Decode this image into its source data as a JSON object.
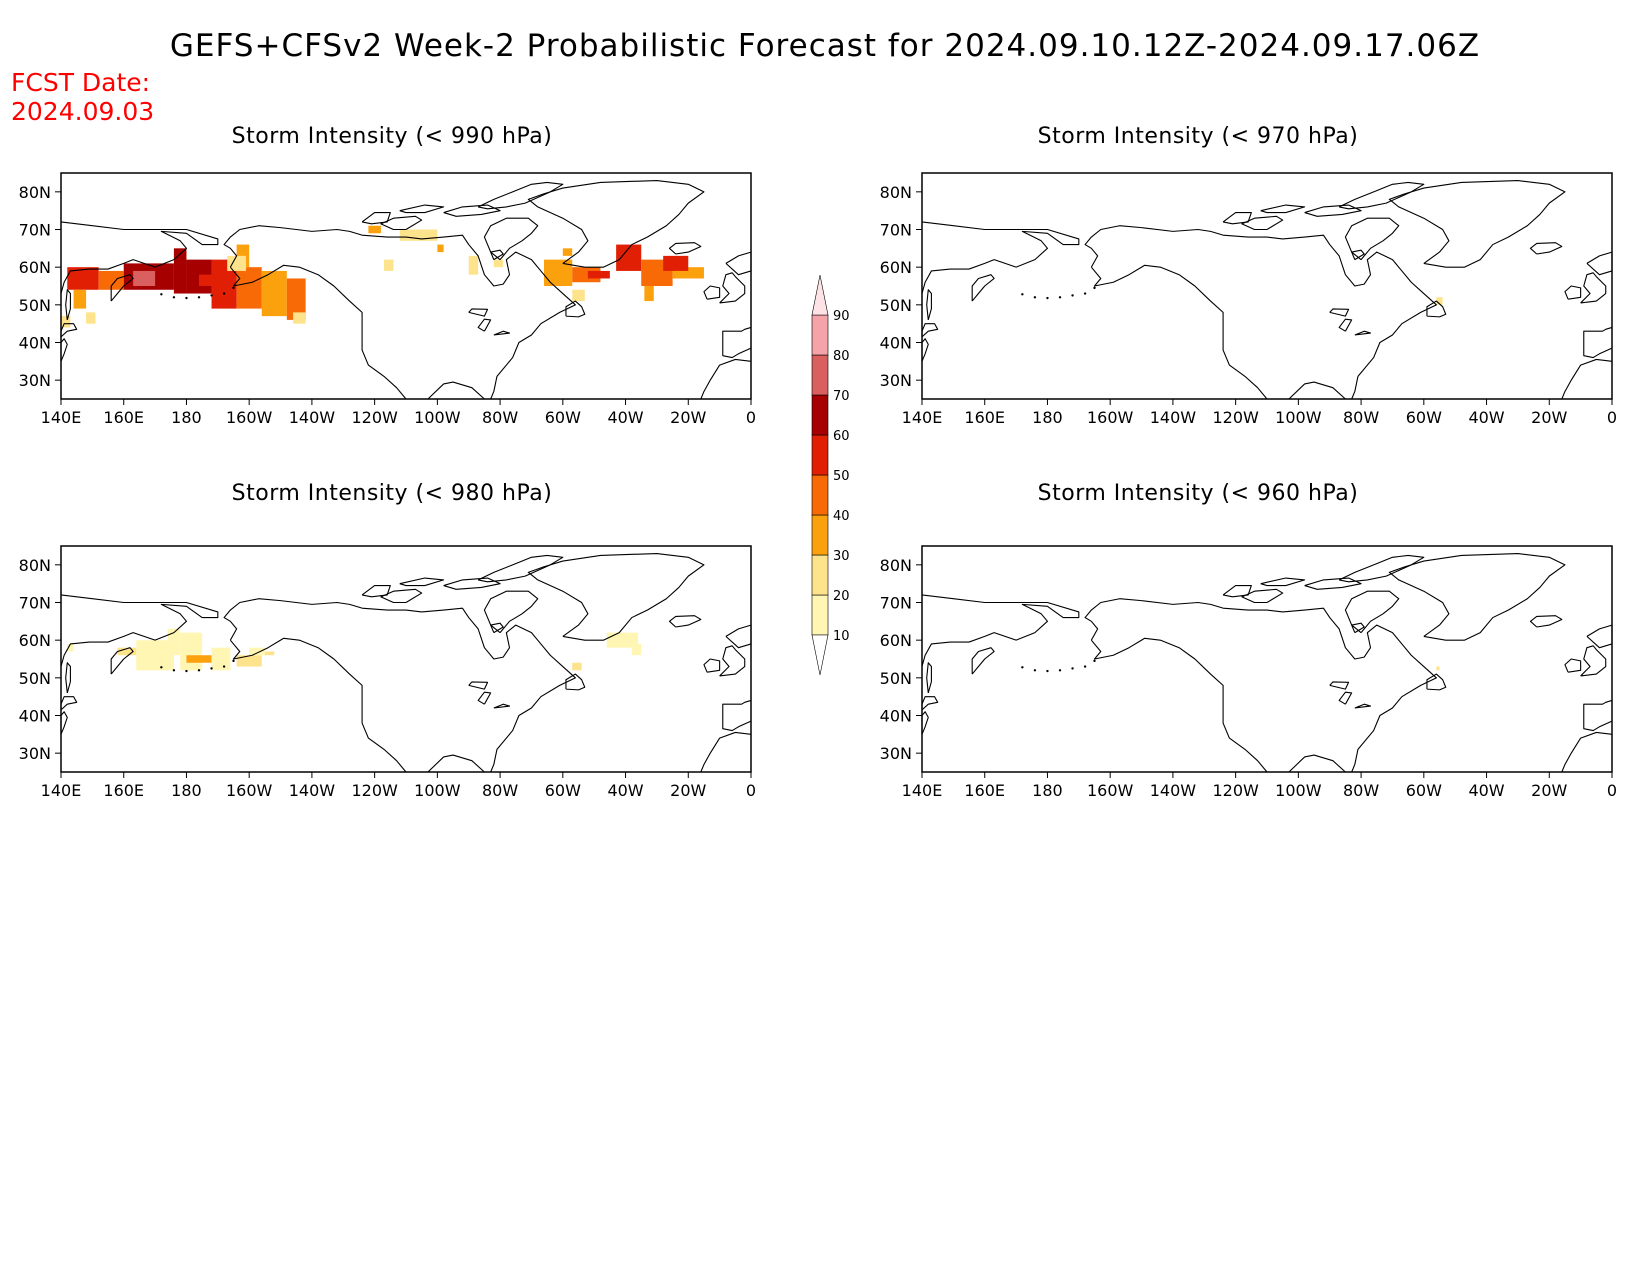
{
  "title": "GEFS+CFSv2 Week-2 Probabilistic Forecast for 2024.09.10.12Z-2024.09.17.06Z",
  "forecast": {
    "label": "FCST Date:",
    "date": "2024.09.03"
  },
  "axes": {
    "lon_labels": [
      "140E",
      "160E",
      "180",
      "160W",
      "140W",
      "120W",
      "100W",
      "80W",
      "60W",
      "40W",
      "20W",
      "0"
    ],
    "lat_labels": [
      "80N",
      "70N",
      "60N",
      "50N",
      "40N",
      "30N"
    ]
  },
  "colorbar": {
    "levels": [
      "10",
      "20",
      "30",
      "40",
      "50",
      "60",
      "70",
      "80",
      "90"
    ],
    "colors": [
      "#fff6b4",
      "#fde38c",
      "#fca10e",
      "#f76a06",
      "#e01f05",
      "#a60000",
      "#d9605f",
      "#f4a3a8",
      "#fde3e6"
    ]
  },
  "panels": [
    {
      "id": "p990",
      "title": "Storm Intensity (< 990 hPa)",
      "cells": [
        [
          142,
          54,
          152,
          60,
          "#e01f05"
        ],
        [
          152,
          54,
          160,
          59,
          "#f76a06"
        ],
        [
          144,
          49,
          148,
          54,
          "#fca10e"
        ],
        [
          140,
          44,
          143,
          47,
          "#fde38c"
        ],
        [
          148,
          45,
          151,
          48,
          "#fde38c"
        ],
        [
          160,
          54,
          176,
          61,
          "#a60000"
        ],
        [
          176,
          53,
          180,
          65,
          "#a60000"
        ],
        [
          180,
          53,
          188,
          62,
          "#a60000"
        ],
        [
          188,
          49,
          196,
          62,
          "#e01f05"
        ],
        [
          196,
          49,
          204,
          60,
          "#f76a06"
        ],
        [
          196,
          60,
          200,
          66,
          "#fca10e"
        ],
        [
          204,
          47,
          212,
          59,
          "#fca10e"
        ],
        [
          212,
          46,
          218,
          57,
          "#f76a06"
        ],
        [
          214,
          45,
          218,
          48,
          "#fde38c"
        ],
        [
          163,
          55,
          170,
          59,
          "#d9605f"
        ],
        [
          184,
          55,
          189,
          58,
          "#e01f05"
        ],
        [
          193,
          59,
          199,
          63,
          "#fde38c"
        ],
        [
          243,
          59,
          246,
          62,
          "#fde38c"
        ],
        [
          248,
          67,
          260,
          70,
          "#fde38c"
        ],
        [
          238,
          69,
          242,
          71,
          "#fca10e"
        ],
        [
          260,
          64,
          262,
          66,
          "#fca10e"
        ],
        [
          270,
          58,
          273,
          63,
          "#fde38c"
        ],
        [
          278,
          60,
          281,
          62,
          "#fde38c"
        ],
        [
          294,
          55,
          303,
          62,
          "#fca10e"
        ],
        [
          303,
          56,
          312,
          60,
          "#f76a06"
        ],
        [
          308,
          57,
          315,
          59,
          "#e01f05"
        ],
        [
          300,
          63,
          303,
          65,
          "#fca10e"
        ],
        [
          303,
          51,
          307,
          54,
          "#fde38c"
        ],
        [
          317,
          59,
          325,
          66,
          "#e01f05"
        ],
        [
          325,
          55,
          335,
          62,
          "#f76a06"
        ],
        [
          335,
          57,
          345,
          60,
          "#fca10e"
        ],
        [
          332,
          59,
          340,
          63,
          "#e01f05"
        ],
        [
          326,
          51,
          329,
          55,
          "#fca10e"
        ]
      ]
    },
    {
      "id": "p970",
      "title": "Storm Intensity (< 970 hPa)",
      "cells": [
        [
          304,
          50,
          306,
          52,
          "#fde38c"
        ]
      ]
    },
    {
      "id": "p980",
      "title": "Storm Intensity (< 980 hPa)",
      "cells": [
        [
          158,
          56,
          164,
          58,
          "#fde38c"
        ],
        [
          164,
          52,
          176,
          60,
          "#fff6b4"
        ],
        [
          174,
          56,
          178,
          63,
          "#fff6b4"
        ],
        [
          178,
          52,
          185,
          62,
          "#fff6b4"
        ],
        [
          180,
          54,
          188,
          56,
          "#fca10e"
        ],
        [
          188,
          52,
          194,
          58,
          "#fff6b4"
        ],
        [
          196,
          53,
          204,
          56,
          "#fde38c"
        ],
        [
          200,
          56,
          205,
          58,
          "#fff6b4"
        ],
        [
          205,
          56,
          208,
          57,
          "#fde38c"
        ],
        [
          142,
          57,
          144,
          59,
          "#fff6b4"
        ],
        [
          314,
          58,
          324,
          62,
          "#fff6b4"
        ],
        [
          322,
          56,
          325,
          59,
          "#fff6b4"
        ],
        [
          303,
          52,
          306,
          54,
          "#fde38c"
        ]
      ]
    },
    {
      "id": "p960",
      "title": "Storm Intensity (< 960 hPa)",
      "cells": [
        [
          304,
          52,
          305,
          53,
          "#fde38c"
        ]
      ]
    }
  ]
}
